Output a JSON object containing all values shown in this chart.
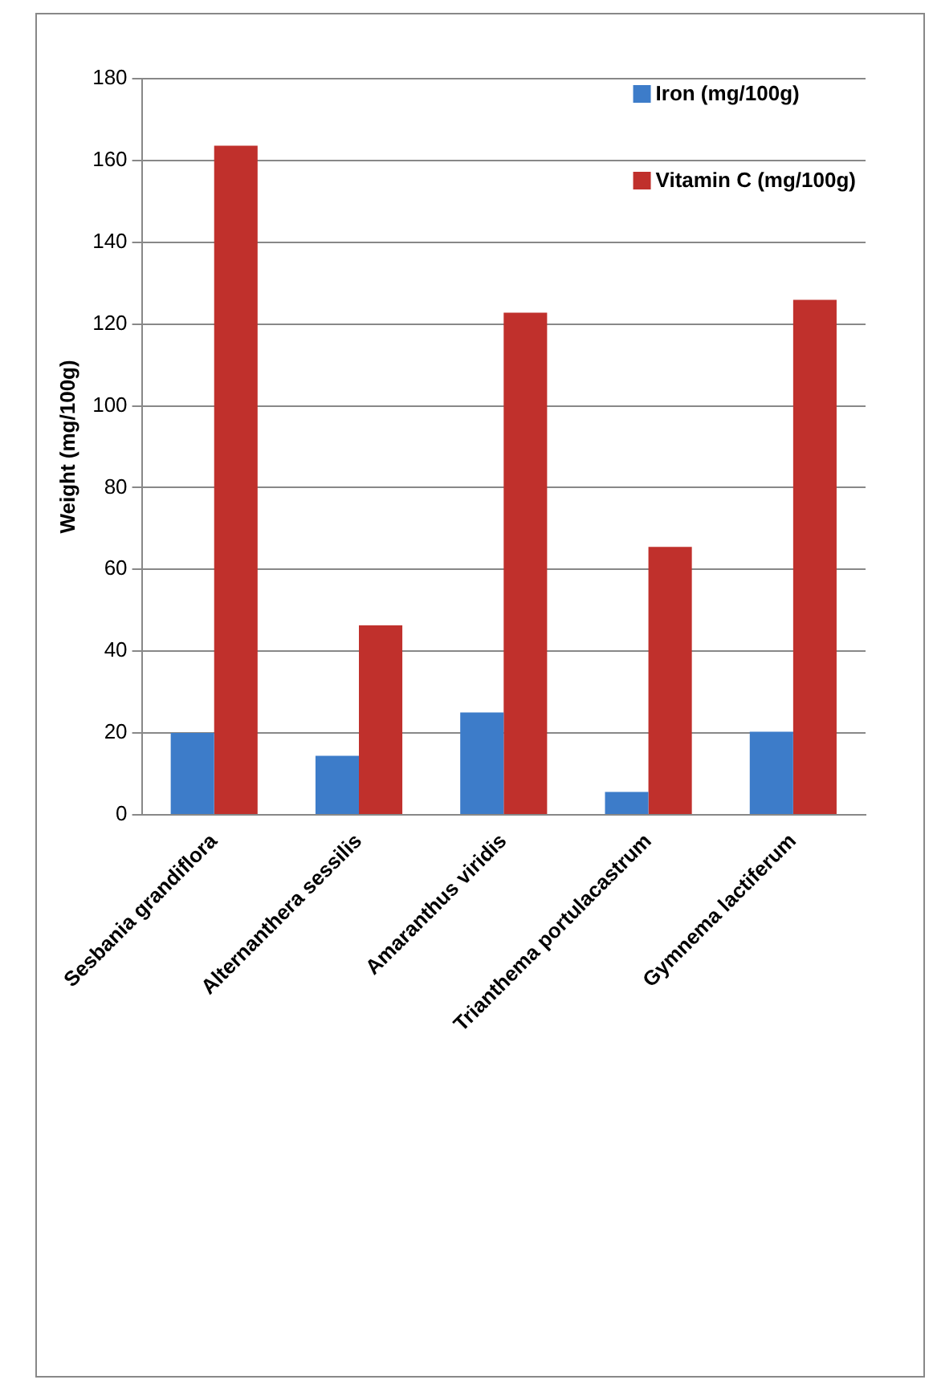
{
  "chart_data": {
    "type": "bar",
    "ylabel": "Weight (mg/100g)",
    "categories": [
      "Sesbania grandiflora",
      "Alternanthera sessilis",
      "Amaranthus viridis",
      "Trianthema portulacastrum",
      "Gymnema lactiferum"
    ],
    "series": [
      {
        "name": "Iron (mg/100g)",
        "color": "#3d7cc9",
        "values": [
          20,
          14.4,
          25,
          5.6,
          20.3
        ]
      },
      {
        "name": "Vitamin C (mg/100g)",
        "color": "#c0302c",
        "values": [
          163.6,
          46.3,
          122.8,
          65.5,
          125.9
        ]
      }
    ],
    "ylim": [
      0,
      180
    ],
    "yticks": [
      0,
      20,
      40,
      60,
      80,
      100,
      120,
      140,
      160,
      180
    ],
    "grid": "y",
    "legend": "top right"
  }
}
